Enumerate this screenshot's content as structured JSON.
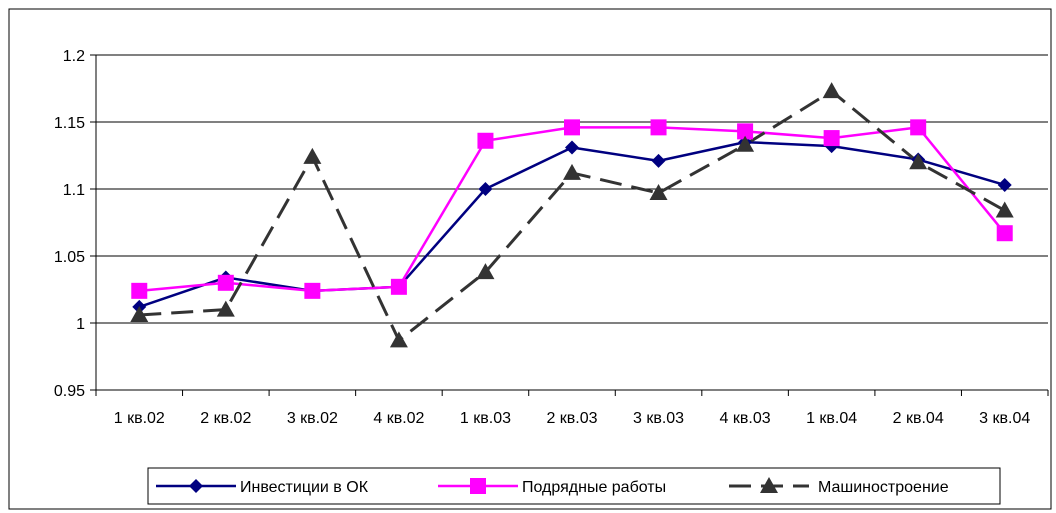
{
  "chart_data": {
    "type": "line",
    "title": "",
    "xlabel": "",
    "ylabel": "",
    "categories": [
      "1 кв.02",
      "2 кв.02",
      "3 кв.02",
      "4 кв.02",
      "1 кв.03",
      "2 кв.03",
      "3 кв.03",
      "4 кв.03",
      "1 кв.04",
      "2 кв.04",
      "3 кв.04"
    ],
    "ylim": [
      0.95,
      1.2
    ],
    "yticks": [
      "0.95",
      "1",
      "1.05",
      "1.1",
      "1.15",
      "1.2"
    ],
    "grid": true,
    "legend_position": "bottom",
    "series": [
      {
        "name": "Инвестиции в ОК",
        "values": [
          1.012,
          1.034,
          1.024,
          1.027,
          1.1,
          1.131,
          1.121,
          1.135,
          1.132,
          1.122,
          1.103
        ],
        "color": "#000080",
        "marker": "diamond",
        "dash": "solid"
      },
      {
        "name": "Подрядные работы",
        "values": [
          1.024,
          1.03,
          1.024,
          1.027,
          1.136,
          1.146,
          1.146,
          1.143,
          1.138,
          1.146,
          1.067
        ],
        "color": "#ff00ff",
        "marker": "square",
        "dash": "solid"
      },
      {
        "name": "Машиностроение",
        "values": [
          1.006,
          1.01,
          1.124,
          0.987,
          1.038,
          1.112,
          1.097,
          1.133,
          1.173,
          1.12,
          1.084
        ],
        "color": "#333333",
        "marker": "triangle",
        "dash": "dashed"
      }
    ]
  }
}
